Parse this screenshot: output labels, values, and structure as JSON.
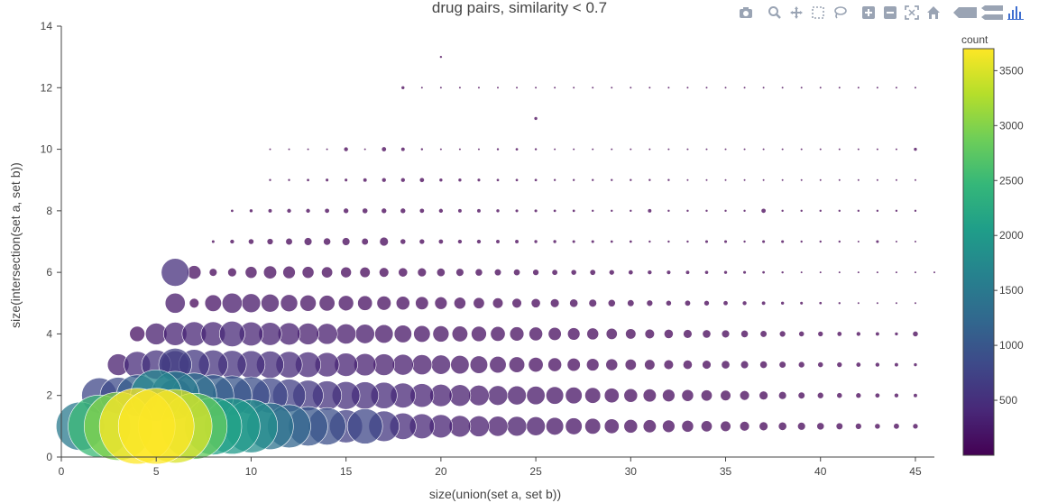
{
  "chart_data": {
    "type": "scatter",
    "title": "drug pairs, similarity < 0.7",
    "xlabel": "size(union(set a, set b))",
    "ylabel": "size(intersection(set a, set b))",
    "xlim": [
      0,
      46
    ],
    "ylim": [
      0,
      14
    ],
    "x_ticks": [
      "0",
      "5",
      "10",
      "15",
      "20",
      "25",
      "30",
      "35",
      "40",
      "45"
    ],
    "y_ticks": [
      "0",
      "2",
      "4",
      "6",
      "8",
      "10",
      "12",
      "14"
    ],
    "grid": false,
    "colorbar": {
      "title": "count",
      "range": [
        0,
        3700
      ],
      "ticks": [
        "500",
        "1000",
        "1500",
        "2000",
        "2500",
        "3000",
        "3500"
      ],
      "colorscale": "viridis"
    },
    "marker_size_encodes": "count",
    "points_by_y": {
      "1": {
        "x_start": 1,
        "counts": [
          1500,
          2500,
          3000,
          3700,
          3700,
          3500,
          2800,
          2100,
          2000,
          1800,
          1400,
          1200,
          1000,
          900,
          700,
          800,
          600,
          450,
          400,
          350,
          300,
          280,
          260,
          250,
          230,
          200,
          180,
          160,
          140,
          120,
          110,
          100,
          90,
          80,
          70,
          60,
          50,
          45,
          40,
          35,
          30,
          25,
          20,
          18,
          15
        ]
      },
      "2": {
        "x_start": 2,
        "counts": [
          800,
          850,
          1100,
          1700,
          1500,
          1300,
          1100,
          1000,
          900,
          800,
          700,
          600,
          550,
          500,
          480,
          450,
          400,
          360,
          320,
          300,
          270,
          250,
          230,
          220,
          200,
          180,
          160,
          140,
          120,
          110,
          100,
          90,
          80,
          70,
          60,
          50,
          40,
          30,
          25,
          20,
          15,
          12,
          10,
          8
        ]
      },
      "3": {
        "x_start": 3,
        "counts": [
          300,
          450,
          550,
          700,
          600,
          550,
          520,
          500,
          480,
          450,
          420,
          380,
          350,
          320,
          300,
          280,
          260,
          240,
          220,
          200,
          180,
          160,
          140,
          120,
          110,
          100,
          90,
          80,
          70,
          60,
          55,
          50,
          45,
          40,
          35,
          30,
          25,
          20,
          15,
          12,
          10,
          8,
          6
        ]
      },
      "4": {
        "x_start": 4,
        "counts": [
          150,
          300,
          350,
          380,
          380,
          420,
          370,
          340,
          320,
          300,
          280,
          260,
          240,
          220,
          200,
          180,
          170,
          160,
          150,
          140,
          130,
          120,
          110,
          100,
          90,
          80,
          70,
          60,
          55,
          50,
          45,
          40,
          35,
          30,
          25,
          20,
          15,
          12,
          10,
          8,
          6,
          20
        ]
      },
      "5": {
        "x_start": 6,
        "counts": [
          260,
          60,
          180,
          260,
          230,
          210,
          190,
          170,
          160,
          150,
          140,
          130,
          120,
          110,
          100,
          90,
          80,
          70,
          60,
          55,
          50,
          45,
          40,
          35,
          30,
          25,
          20,
          18,
          15,
          12,
          10,
          8,
          6,
          5,
          4,
          3,
          2,
          2,
          2,
          2
        ]
      },
      "6": {
        "x_start": 6,
        "counts": [
          500,
          120,
          40,
          50,
          90,
          110,
          100,
          90,
          80,
          75,
          70,
          60,
          55,
          50,
          45,
          40,
          35,
          30,
          28,
          25,
          22,
          20,
          18,
          15,
          12,
          10,
          9,
          8,
          7,
          6,
          5,
          4,
          3,
          2,
          2,
          2,
          2,
          2,
          2,
          2,
          2
        ]
      },
      "7": {
        "x_start": 8,
        "counts": [
          5,
          10,
          20,
          25,
          30,
          40,
          35,
          40,
          30,
          50,
          20,
          15,
          12,
          10,
          10,
          8,
          8,
          6,
          6,
          5,
          5,
          4,
          4,
          3,
          3,
          3,
          5,
          5,
          3,
          5,
          5,
          3,
          3,
          3,
          2,
          5,
          2,
          2
        ]
      },
      "8": {
        "x_start": 9,
        "counts": [
          4,
          6,
          8,
          10,
          10,
          12,
          15,
          20,
          15,
          15,
          12,
          10,
          8,
          8,
          6,
          5,
          5,
          4,
          4,
          3,
          3,
          3,
          8,
          3,
          3,
          3,
          3,
          3,
          12,
          3,
          3,
          3,
          3,
          3,
          3,
          3,
          3
        ]
      },
      "9": {
        "x_start": 11,
        "counts": [
          3,
          3,
          4,
          5,
          5,
          8,
          10,
          10,
          12,
          6,
          6,
          5,
          4,
          4,
          4,
          3,
          3,
          3,
          3,
          3,
          3,
          3,
          2,
          2,
          2,
          2,
          2,
          2,
          2,
          2,
          2,
          2,
          2,
          2,
          2
        ]
      },
      "10": {
        "x_start": 11,
        "counts": [
          2,
          2,
          2,
          2,
          10,
          2,
          12,
          8,
          3,
          2,
          2,
          2,
          3,
          4,
          3,
          2,
          2,
          2,
          2,
          2,
          2,
          2,
          2,
          2,
          2,
          2,
          2,
          2,
          2,
          2,
          2,
          2,
          2,
          2,
          6
        ]
      },
      "11": {
        "x_start": 25,
        "counts": [
          6
        ]
      },
      "12": {
        "x_start": 18,
        "counts": [
          6,
          2,
          2,
          2,
          2,
          2,
          2,
          2,
          2,
          2,
          2,
          2,
          2,
          2,
          2,
          2,
          2,
          2,
          2,
          2,
          2,
          2,
          2,
          2,
          2,
          2,
          2,
          2
        ]
      },
      "13": {
        "x_start": 20,
        "counts": [
          3
        ]
      }
    },
    "extra_points": [
      {
        "x": 6,
        "y": 2,
        "count": 700
      },
      {
        "x": 6,
        "y": 3,
        "count": 500
      }
    ]
  },
  "modebar": {
    "icons": [
      "camera-icon",
      "zoom-icon",
      "pan-icon",
      "box-select-icon",
      "lasso-icon",
      "zoom-in-icon",
      "zoom-out-icon",
      "autoscale-icon",
      "reset-axes-icon",
      "spike-lines-icon",
      "compare-data-icon",
      "plotly-logo-icon"
    ]
  }
}
